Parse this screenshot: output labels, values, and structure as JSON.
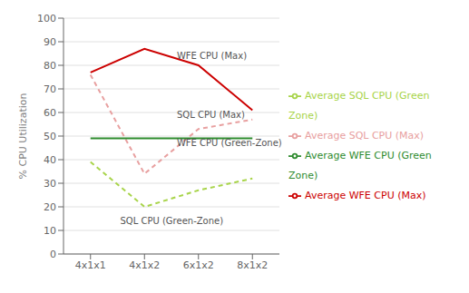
{
  "chart_data": {
    "type": "line",
    "categories": [
      "4x1x1",
      "4x1x2",
      "6x1x2",
      "8x1x2"
    ],
    "series": [
      {
        "name": "Average WFE CPU (Max)",
        "color": "#cc0000",
        "line_style": "solid",
        "values": [
          77,
          87,
          80,
          61
        ]
      },
      {
        "name": "Average SQL CPU (Max)",
        "color": "#e8a0a0",
        "line_style": "dashed",
        "values": [
          76,
          34,
          53,
          57
        ]
      },
      {
        "name": "Average WFE CPU (Green Zone)",
        "color": "#2e8b2e",
        "line_style": "solid",
        "values": [
          49,
          49,
          49,
          49
        ]
      },
      {
        "name": "Average SQL CPU (Green Zone)",
        "color": "#a8d44a",
        "line_style": "dashed",
        "values": [
          39,
          20,
          27,
          32
        ]
      }
    ],
    "ylabel": "% CPU Utilization",
    "ylim": [
      0,
      100
    ],
    "yticks": [
      0,
      10,
      20,
      30,
      40,
      50,
      60,
      70,
      80,
      90,
      100
    ],
    "grid": true,
    "legend": "right",
    "annotations": [
      {
        "text": "WFE CPU (Max)",
        "x": 1.6,
        "y": 82
      },
      {
        "text": "SQL CPU (Max)",
        "x": 1.6,
        "y": 57
      },
      {
        "text": "WFE CPU (Green-Zone)",
        "x": 1.6,
        "y": 45
      },
      {
        "text": "SQL CPU (Green-Zone)",
        "x": 0.55,
        "y": 12
      }
    ]
  }
}
